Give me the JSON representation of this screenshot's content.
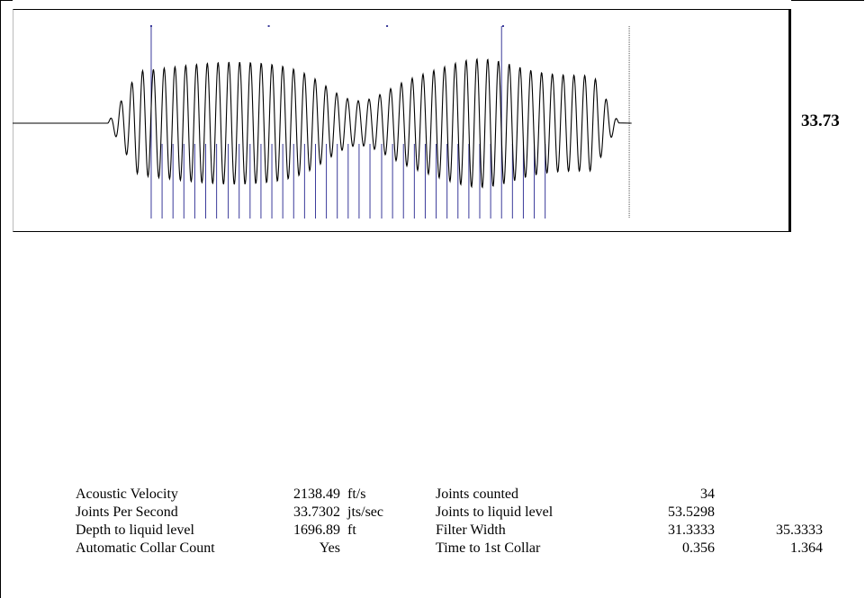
{
  "colors": {
    "waveform": "#000000",
    "collar_marker": "#3a3a9a",
    "reference_marker": "#8a1d2a",
    "end_marker": "#555555"
  },
  "chart": {
    "title": "",
    "side_value": "33.73"
  },
  "chart_data": {
    "type": "line",
    "title": "",
    "xlabel": "",
    "ylabel": "",
    "grid": false,
    "legend": "none",
    "description": "Filtered acoustic echo signal with collar (joint) markers",
    "signal": {
      "start_flat": 0.0,
      "burst_start": 0.122,
      "burst_end": 0.779,
      "end_flat": 0.795,
      "oscillation_frequency": 33.73
    },
    "collar_markers": [
      0.178,
      0.192,
      0.206,
      0.22,
      0.234,
      0.248,
      0.262,
      0.277,
      0.291,
      0.305,
      0.319,
      0.333,
      0.347,
      0.361,
      0.375,
      0.389,
      0.403,
      0.417,
      0.431,
      0.445,
      0.459,
      0.474,
      0.488,
      0.502,
      0.516,
      0.53,
      0.544,
      0.558,
      0.572,
      0.586,
      0.6,
      0.614,
      0.628,
      0.642,
      0.656,
      0.67,
      0.684
    ],
    "tall_markers": [
      0.178,
      0.329,
      0.481,
      0.63
    ],
    "reference_marker": 0.329,
    "end_marker": 0.792
  },
  "stats": {
    "rows": [
      {
        "label": "Acoustic Velocity",
        "value": "2138.49",
        "unit": "ft/s",
        "label2": "Joints counted",
        "value2": "34",
        "value3": ""
      },
      {
        "label": "Joints Per Second",
        "value": "33.7302",
        "unit": "jts/sec",
        "label2": "Joints to liquid level",
        "value2": "53.5298",
        "value3": ""
      },
      {
        "label": "Depth to liquid level",
        "value": "1696.89",
        "unit": "ft",
        "label2": "Filter Width",
        "value2": "31.3333",
        "value3": "35.3333"
      },
      {
        "label": "Automatic Collar Count",
        "value": "Yes",
        "unit": "",
        "label2": "Time to 1st Collar",
        "value2": "0.356",
        "value3": "1.364"
      }
    ]
  }
}
